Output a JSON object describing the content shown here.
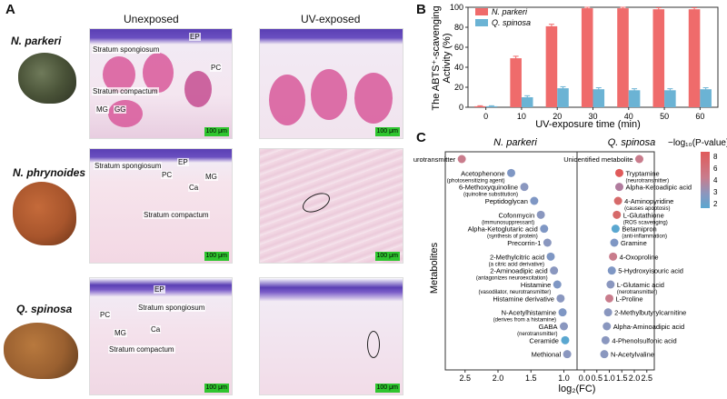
{
  "panelA": {
    "letter": "A",
    "col_unexposed": "Unexposed",
    "col_uv": "UV-exposed",
    "rows": [
      {
        "species": "N. parkeri",
        "labels": {
          "ep": "EP",
          "ss": "Stratum spongiosum",
          "pc": "PC",
          "sc": "Stratum compactum",
          "mg": "MG",
          "gg": "GG"
        },
        "scale": "100 μm",
        "scale_uv": "100 μm"
      },
      {
        "species": "N. phrynoides",
        "labels": {
          "ep": "EP",
          "ss": "Stratum spongiosum",
          "pc": "PC",
          "mg": "MG",
          "ca": "Ca",
          "sc": "Stratum compactum"
        },
        "scale": "100 μm",
        "scale_uv": "100 μm"
      },
      {
        "species": "Q. spinosa",
        "labels": {
          "ep": "EP",
          "ss": "Stratum spongiosum",
          "pc": "PC",
          "mg": "MG",
          "ca": "Ca",
          "sc": "Stratum compactum"
        },
        "scale": "100 μm",
        "scale_uv": "100 μm"
      }
    ]
  },
  "chart_data": [
    {
      "type": "bar",
      "letter": "B",
      "ylabel_line1": "The ABTS⁺-scavenging",
      "ylabel_line2": "Activity (%)",
      "xlabel": "UV-exposure time (min)",
      "categories": [
        "0",
        "10",
        "20",
        "30",
        "40",
        "50",
        "60"
      ],
      "ylim": [
        0,
        100
      ],
      "yticks": [
        "0",
        "20",
        "40",
        "60",
        "80",
        "100"
      ],
      "legend_position": "top-left",
      "series": [
        {
          "name": "N. parkeri",
          "color": "#ef6b6b",
          "values": [
            1,
            49,
            81,
            99,
            99,
            98,
            98
          ],
          "errors": [
            0.5,
            2,
            2,
            1,
            1,
            1.5,
            1.5
          ]
        },
        {
          "name": "Q. spinosa",
          "color": "#6bb3d4",
          "values": [
            1,
            10,
            19,
            18,
            17,
            17,
            18
          ],
          "errors": [
            0.5,
            1.5,
            1.5,
            1.5,
            1.5,
            1.5,
            1.5
          ]
        }
      ]
    },
    {
      "type": "scatter",
      "letter": "C",
      "ylabel": "Metabolites",
      "xlabel": "log₂(FC)",
      "left_title": "N. parkeri",
      "right_title": "Q. spinosa",
      "legend_title": "−log₁₀(P-value)",
      "legend_ticks": [
        "8",
        "6",
        "4",
        "3",
        "2"
      ],
      "left_xticks": [
        "2.5",
        "2.0",
        "1.5",
        "1.0"
      ],
      "right_xticks": [
        "0.0",
        "0.5",
        "1.0",
        "1.5",
        "2.0",
        "2.5"
      ],
      "left_points": [
        {
          "name": "Neurotransmitter",
          "sub": "",
          "x": 2.55,
          "p": 5.5,
          "color": "#c97c8c"
        },
        {
          "name": "Acetophenone",
          "sub": "(photosensitizing agent)",
          "x": 1.8,
          "p": 2.5,
          "color": "#7f97c4"
        },
        {
          "name": "6-Methoxyquinoline",
          "sub": "(quinoline substitution)",
          "x": 1.6,
          "p": 2.5,
          "color": "#8a97bf"
        },
        {
          "name": "Peptidoglycan",
          "sub": "",
          "x": 1.45,
          "p": 2.3,
          "color": "#7f97c4"
        },
        {
          "name": "Cofonmycin",
          "sub": "(immunosuppressant)",
          "x": 1.35,
          "p": 2.3,
          "color": "#8a97bf"
        },
        {
          "name": "Alpha-Ketoglutaric acid",
          "sub": "(synthesis of protein)",
          "x": 1.3,
          "p": 2.2,
          "color": "#7f97c4"
        },
        {
          "name": "Precorrin-1",
          "sub": "",
          "x": 1.25,
          "p": 2.2,
          "color": "#8a97bf"
        },
        {
          "name": "2-Methylcitric acid",
          "sub": "(a citric acid derivative)",
          "x": 1.2,
          "p": 2.2,
          "color": "#7f97c4"
        },
        {
          "name": "2-Aminoadipic acid",
          "sub": "(antagonizes neuroexcitation)",
          "x": 1.15,
          "p": 2.2,
          "color": "#8a97bf"
        },
        {
          "name": "Histamine",
          "sub": "(vasodilator, neurotransmitter)",
          "x": 1.1,
          "p": 2.2,
          "color": "#7f97c4"
        },
        {
          "name": "Histamine derivative",
          "sub": "",
          "x": 1.05,
          "p": 2.2,
          "color": "#8a97bf"
        },
        {
          "name": "N-Acetylhistamine",
          "sub": "(derives from a histamine)",
          "x": 1.02,
          "p": 2.2,
          "color": "#7f97c4"
        },
        {
          "name": "GABA",
          "sub": "(nerotransmitter)",
          "x": 1.0,
          "p": 2.2,
          "color": "#8a97bf"
        },
        {
          "name": "Ceramide",
          "sub": "",
          "x": 0.98,
          "p": 2.0,
          "color": "#5aa7d0"
        },
        {
          "name": "Methional",
          "sub": "",
          "x": 0.95,
          "p": 2.2,
          "color": "#8a97bf"
        }
      ],
      "right_points": [
        {
          "name": "Unidentified metabolite",
          "sub": "",
          "x": 2.2,
          "p": 5.5,
          "color": "#c97c8c"
        },
        {
          "name": "Tryptamine",
          "sub": "(neurotransmitter)",
          "x": 1.4,
          "p": 7.5,
          "color": "#e05a5a"
        },
        {
          "name": "Alpha-Ketoadipic acid",
          "sub": "",
          "x": 1.4,
          "p": 4.5,
          "color": "#b07c9e"
        },
        {
          "name": "4-Aminopyridine",
          "sub": "(causes apoptosis)",
          "x": 1.35,
          "p": 6.5,
          "color": "#d66a6a"
        },
        {
          "name": "L-Glutathione",
          "sub": "(ROS scavenging)",
          "x": 1.3,
          "p": 6.5,
          "color": "#d66a6a"
        },
        {
          "name": "Betamipron",
          "sub": "(anti-inflammation)",
          "x": 1.25,
          "p": 2.0,
          "color": "#5aa7d0"
        },
        {
          "name": "Gramine",
          "sub": "",
          "x": 1.2,
          "p": 2.3,
          "color": "#7f97c4"
        },
        {
          "name": "4-Oxoproline",
          "sub": "",
          "x": 1.15,
          "p": 5.5,
          "color": "#c97c8c"
        },
        {
          "name": "5-Hydroxyisouric acid",
          "sub": "",
          "x": 1.1,
          "p": 2.3,
          "color": "#7f97c4"
        },
        {
          "name": "L-Glutamic acid",
          "sub": "(nerotransmitter)",
          "x": 1.05,
          "p": 2.3,
          "color": "#8a97bf"
        },
        {
          "name": "L-Proline",
          "sub": "",
          "x": 1.0,
          "p": 5.5,
          "color": "#c97c8c"
        },
        {
          "name": "2-Methylbutyrylcarnitine",
          "sub": "",
          "x": 0.95,
          "p": 2.3,
          "color": "#8a97bf"
        },
        {
          "name": "Alpha-Aminoadipic acid",
          "sub": "",
          "x": 0.9,
          "p": 2.3,
          "color": "#8a97bf"
        },
        {
          "name": "4-Phenolsulfonic acid",
          "sub": "",
          "x": 0.85,
          "p": 2.3,
          "color": "#8a97bf"
        },
        {
          "name": "N-Acetylvaline",
          "sub": "",
          "x": 0.8,
          "p": 2.3,
          "color": "#8a97bf"
        }
      ]
    }
  ]
}
